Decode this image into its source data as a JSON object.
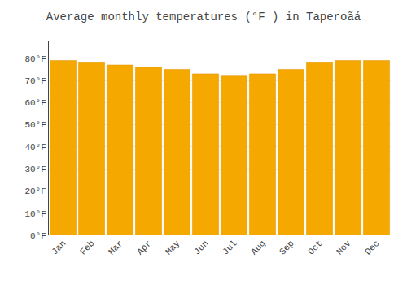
{
  "chart_data": {
    "type": "bar",
    "title": "Average monthly temperatures (°F ) in Taperoãá",
    "categories": [
      "Jan",
      "Feb",
      "Mar",
      "Apr",
      "May",
      "Jun",
      "Jul",
      "Aug",
      "Sep",
      "Oct",
      "Nov",
      "Dec"
    ],
    "values": [
      79,
      78,
      77,
      76,
      75,
      73,
      72,
      73,
      75,
      78,
      79,
      79
    ],
    "color": "#F5A800",
    "ylim": [
      0,
      88
    ],
    "yticks": [
      {
        "value": 0,
        "label": "0°F"
      },
      {
        "value": 10,
        "label": "10°F"
      },
      {
        "value": 20,
        "label": "20°F"
      },
      {
        "value": 30,
        "label": "30°F"
      },
      {
        "value": 40,
        "label": "40°F"
      },
      {
        "value": 50,
        "label": "50°F"
      },
      {
        "value": 60,
        "label": "60°F"
      },
      {
        "value": 70,
        "label": "70°F"
      },
      {
        "value": 80,
        "label": "80°F"
      }
    ],
    "grid": true
  }
}
